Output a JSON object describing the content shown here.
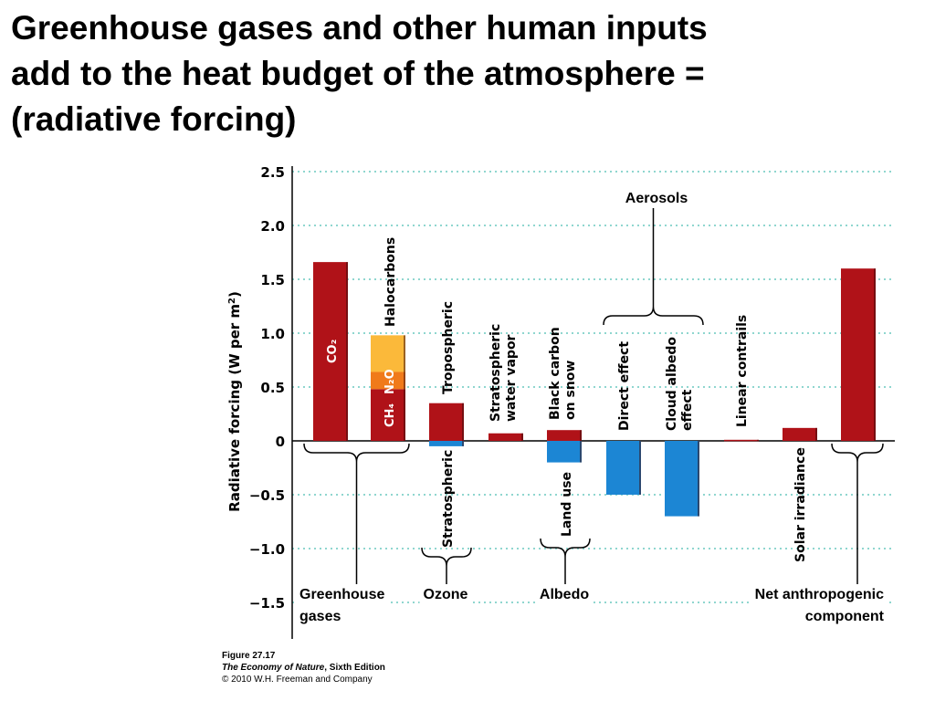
{
  "slide": {
    "title_lines": [
      "Greenhouse gases and other human inputs",
      "add to the heat budget of the atmosphere =",
      "(radiative forcing)"
    ]
  },
  "figure_caption": {
    "figure": "Figure 27.17",
    "book_title": "The Economy of Nature",
    "edition": ", Sixth Edition",
    "copyright": "© 2010 W.H. Freeman and Company"
  },
  "chart_data": {
    "type": "bar",
    "ylabel_prefix": "Radiative forcing (W per m",
    "ylabel_sup": "2",
    "ylabel_suffix": ")",
    "ylim": [
      -1.5,
      2.5
    ],
    "yticks": [
      2.5,
      2.0,
      1.5,
      1.0,
      0.5,
      0,
      -0.5,
      -1.0,
      -1.5
    ],
    "ytick_labels": [
      "2.5",
      "2.0",
      "1.5",
      "1.0",
      "0.5",
      "0",
      "−0.5",
      "−1.0",
      "−1.5"
    ],
    "grid": true,
    "colors": {
      "positive": "#b01218",
      "negative": "#1c86d4",
      "ch4": "#b01218",
      "n2o": "#f07a1a",
      "halocarbons": "#fbb93a"
    },
    "bars": [
      {
        "label": "CO₂",
        "value": 1.66
      },
      {
        "label_parts": [
          "CH₄",
          "N₂O",
          "Halocarbons"
        ],
        "stack": [
          0.48,
          0.16,
          0.34
        ],
        "total": 0.98
      },
      {
        "label_pos": "Tropospheric",
        "value_pos": 0.35,
        "label_neg": "Stratospheric",
        "value_neg": -0.05
      },
      {
        "label": "Stratospheric water vapor",
        "label_lines": [
          "Stratospheric",
          "water vapor"
        ],
        "value": 0.07
      },
      {
        "label_pos_lines": [
          "Black carbon",
          "on snow"
        ],
        "value_pos": 0.1,
        "label_neg": "Land use",
        "value_neg": -0.2
      },
      {
        "label": "Direct effect",
        "value": -0.5
      },
      {
        "label_lines": [
          "Cloud albedo",
          "effect"
        ],
        "value": -0.7
      },
      {
        "label": "Linear contrails",
        "value": 0.01
      },
      {
        "label": "Solar irradiance",
        "value": 0.12
      },
      {
        "label": "Net anthropogenic component",
        "value": 1.6
      }
    ],
    "groups": {
      "aerosols": "Aerosols",
      "greenhouse_gases_lines": [
        "Greenhouse",
        "gases"
      ],
      "ozone": "Ozone",
      "albedo": "Albedo",
      "net_lines": [
        "Net anthropogenic",
        "component"
      ]
    }
  }
}
